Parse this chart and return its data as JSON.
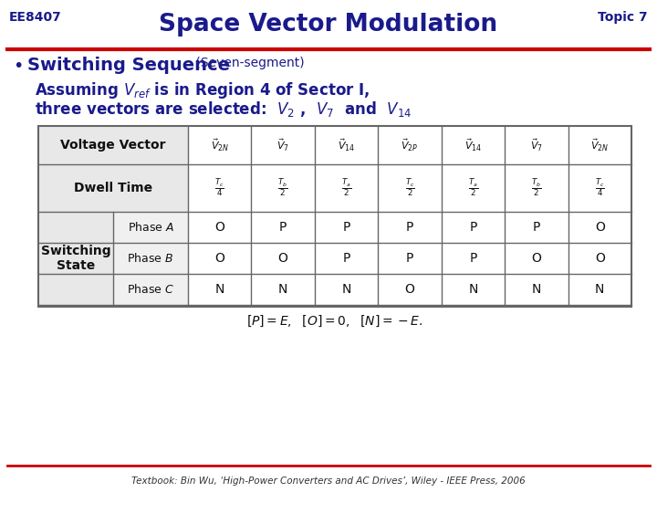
{
  "title": "Space Vector Modulation",
  "top_left": "EE8407",
  "top_right": "Topic 7",
  "bullet_main": "Switching Sequence",
  "bullet_sub": "(Seven-segment)",
  "line1": "Assuming $V_{ref}$ is in Region 4 of Sector I,",
  "line2": "three vectors are selected:  $V_2$ ,  $V_7$  and  $V_{14}$",
  "footer": "Textbook: Bin Wu, ‘High-Power Converters and AC Drives’, Wiley - IEEE Press, 2006",
  "title_color": "#1a1a8c",
  "header_text_color": "#1a1a8c",
  "bullet_color": "#1a1a8c",
  "body_text_color": "#1a1a8c",
  "red_line_color": "#cc0000",
  "table_border_color": "#555555",
  "bg_color": "#ffffff",
  "voltage_vectors": [
    "$\\vec{V}_{2N}$",
    "$\\vec{V}_7$",
    "$\\vec{V}_{14}$",
    "$\\vec{V}_{2P}$",
    "$\\vec{V}_{14}$",
    "$\\vec{V}_7$",
    "$\\vec{V}_{2N}$"
  ],
  "dwell_times": [
    "$\\frac{T_c}{4}$",
    "$\\frac{T_b}{2}$",
    "$\\frac{T_a}{2}$",
    "$\\frac{T_c}{2}$",
    "$\\frac{T_a}{2}$",
    "$\\frac{T_b}{2}$",
    "$\\frac{T_c}{4}$"
  ],
  "phase_A": [
    "O",
    "P",
    "P",
    "P",
    "P",
    "P",
    "O"
  ],
  "phase_B": [
    "O",
    "O",
    "P",
    "P",
    "P",
    "O",
    "O"
  ],
  "phase_C": [
    "N",
    "N",
    "N",
    "O",
    "N",
    "N",
    "N"
  ],
  "legend_text": "$[P]=E,$  $[O]=0,$  $[N]=-E.$"
}
